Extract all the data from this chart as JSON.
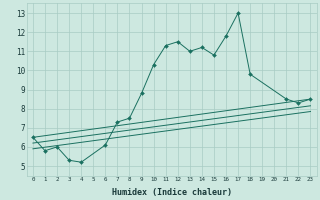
{
  "title": "",
  "xlabel": "Humidex (Indice chaleur)",
  "ylabel": "",
  "xlim": [
    -0.5,
    23.5
  ],
  "ylim": [
    4.5,
    13.5
  ],
  "yticks": [
    5,
    6,
    7,
    8,
    9,
    10,
    11,
    12,
    13
  ],
  "xticks": [
    0,
    1,
    2,
    3,
    4,
    5,
    6,
    7,
    8,
    9,
    10,
    11,
    12,
    13,
    14,
    15,
    16,
    17,
    18,
    19,
    20,
    21,
    22,
    23
  ],
  "bg_color": "#cde8e0",
  "line_color": "#1a7060",
  "grid_color": "#a8ccc4",
  "series_main": {
    "x": [
      0,
      1,
      2,
      3,
      4,
      6,
      7,
      8,
      9,
      10,
      11,
      12,
      13,
      14,
      15,
      16,
      17,
      18,
      21,
      22,
      23
    ],
    "y": [
      6.5,
      5.8,
      6.0,
      5.3,
      5.2,
      6.1,
      7.3,
      7.5,
      8.8,
      10.3,
      11.3,
      11.5,
      11.0,
      11.2,
      10.8,
      11.8,
      13.0,
      9.8,
      8.5,
      8.3,
      8.5
    ]
  },
  "series_lines": [
    {
      "x": [
        0,
        23
      ],
      "y": [
        6.5,
        8.5
      ]
    },
    {
      "x": [
        0,
        23
      ],
      "y": [
        6.2,
        8.15
      ]
    },
    {
      "x": [
        0,
        23
      ],
      "y": [
        5.9,
        7.85
      ]
    }
  ]
}
